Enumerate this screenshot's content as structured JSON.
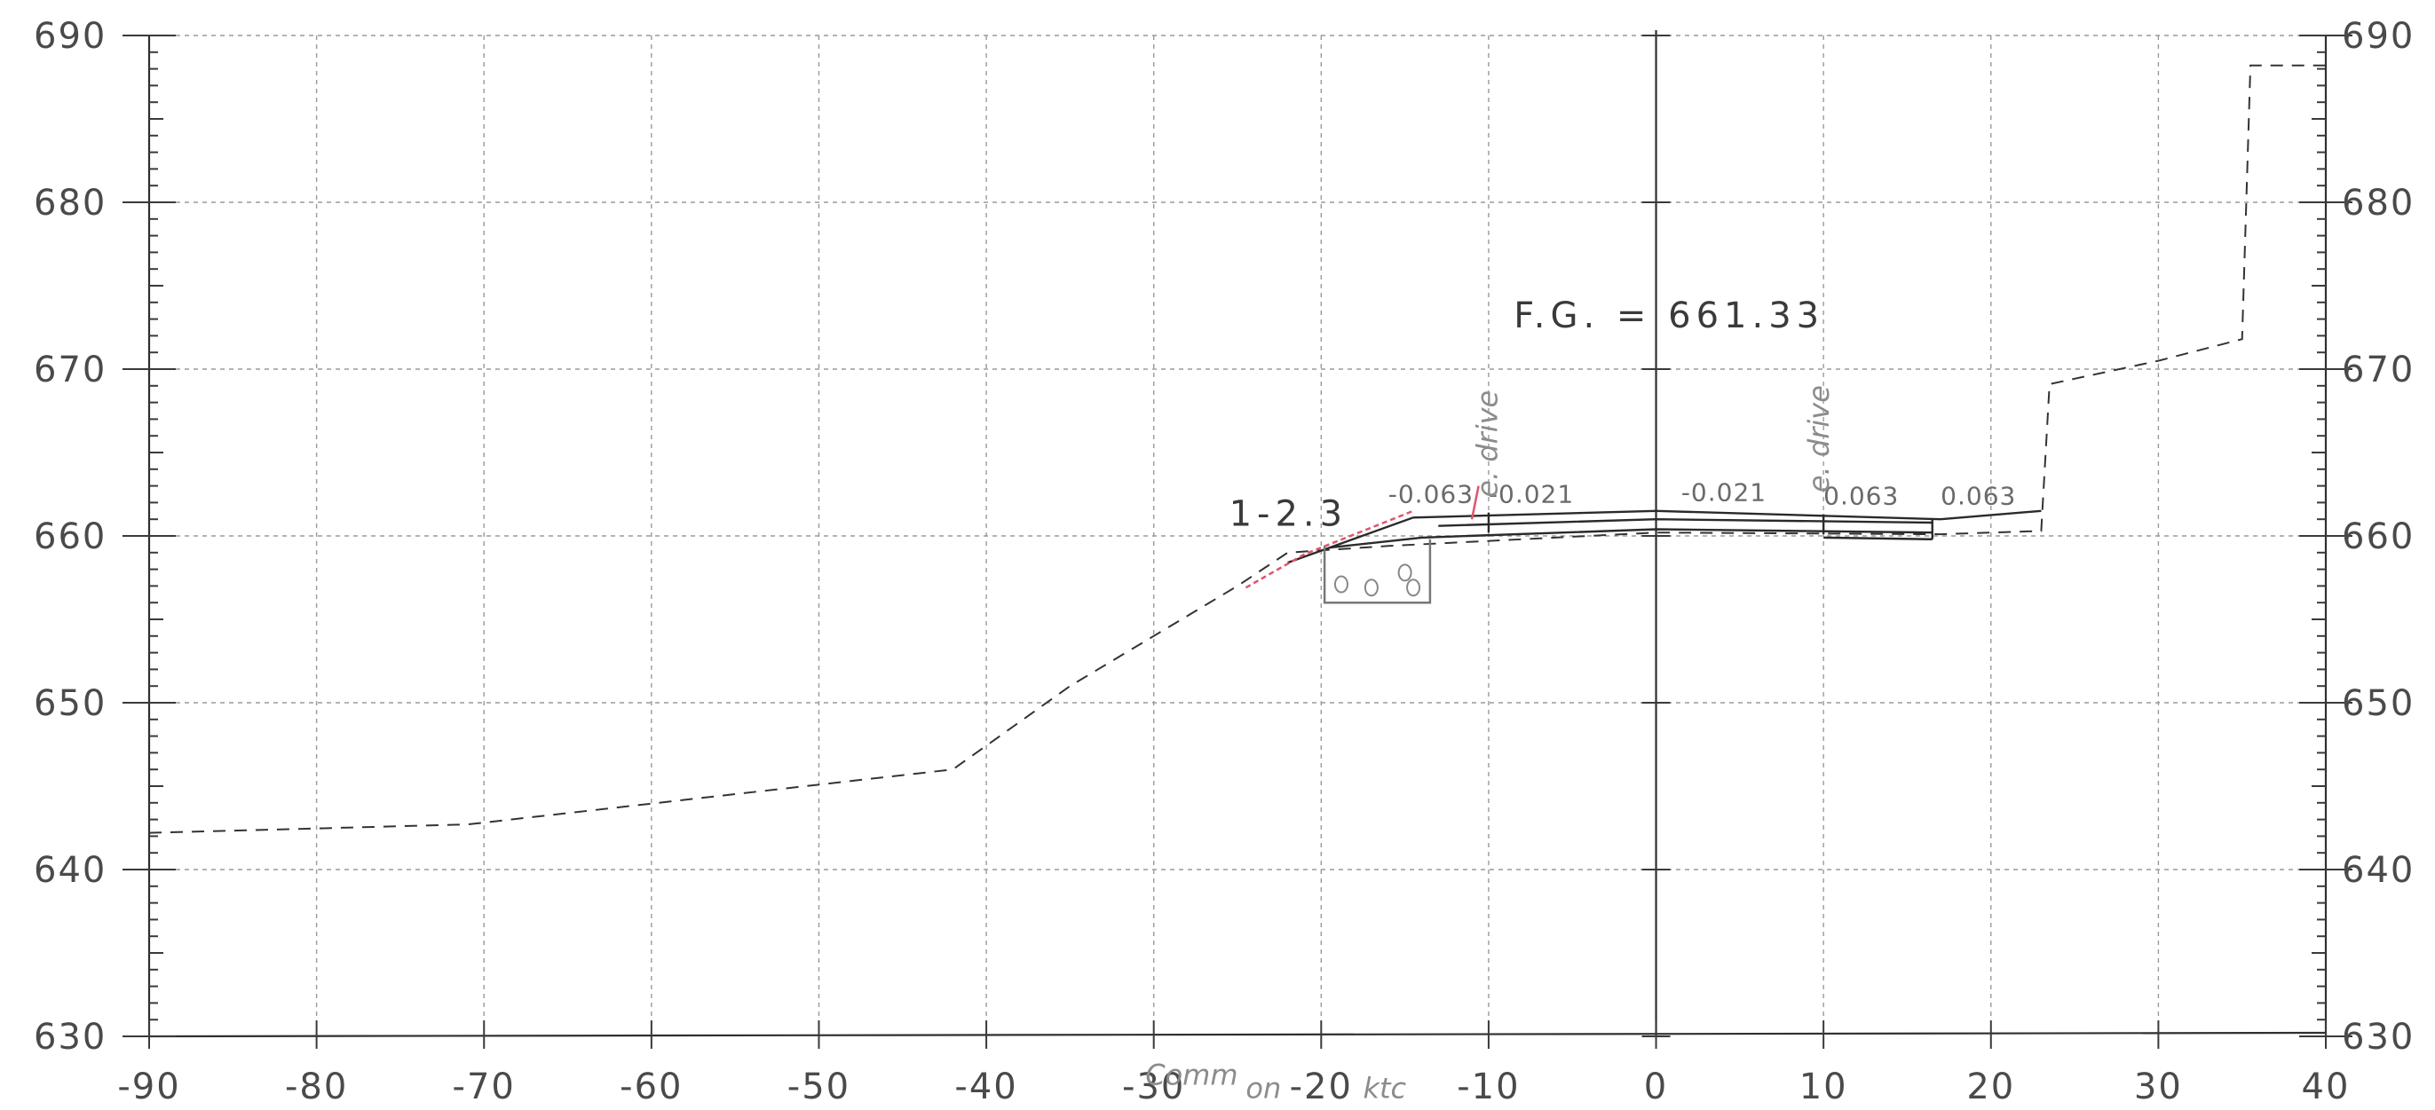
{
  "axes": {
    "x_ticks": [
      "-90",
      "-80",
      "-70",
      "-60",
      "-50",
      "-40",
      "-30",
      "-20",
      "-10",
      "0",
      "10",
      "20",
      "30",
      "40"
    ],
    "y_ticks": [
      "630",
      "640",
      "650",
      "660",
      "670",
      "680",
      "690"
    ]
  },
  "chart_data": {
    "type": "line",
    "title": "",
    "xlabel": "",
    "ylabel": "",
    "xlim": [
      -90,
      40
    ],
    "ylim": [
      630,
      690
    ],
    "grid": true,
    "series": [
      {
        "x": [
          -90,
          -71,
          -42,
          -35,
          -30,
          -25,
          -22,
          -16,
          0,
          17,
          23,
          23.5,
          30,
          35,
          35.5,
          40
        ],
        "values": [
          642.2,
          642.7,
          646,
          651,
          654,
          657,
          659,
          659.4,
          660.2,
          660.1,
          660.3,
          669.1,
          670.5,
          671.8,
          688.2,
          688.2
        ]
      },
      {
        "x": [
          -22,
          -19.5,
          -14.5,
          0,
          17,
          23
        ],
        "values": [
          658.4,
          659.3,
          661.1,
          661.5,
          661,
          661.5
        ]
      },
      {
        "x": [
          -19.5,
          -14,
          0,
          16.5
        ],
        "values": [
          659.3,
          659.9,
          660.4,
          660.2
        ]
      },
      {
        "x": [
          -13,
          0,
          16.5
        ],
        "values": [
          660.6,
          661,
          660.8
        ]
      }
    ],
    "annotations": [
      {
        "text": "F.G. = 661.33",
        "x": -8.5,
        "y": 672.5
      },
      {
        "text": "1-2.3",
        "x": -25.5,
        "y": 660.6
      },
      {
        "text": "-0.063",
        "x": -16,
        "y": 662
      },
      {
        "text": "-0.021",
        "x": -10,
        "y": 662
      },
      {
        "text": "-0.021",
        "x": 1.5,
        "y": 662.1
      },
      {
        "text": "0.063",
        "x": 10,
        "y": 661.9
      },
      {
        "text": "0.063",
        "x": 17,
        "y": 661.9
      },
      {
        "text": "e. drive",
        "x": -9.5,
        "y": 662.3
      },
      {
        "text": "e. drive",
        "x": 10.3,
        "y": 662.6
      },
      {
        "text": "Comm",
        "x": -30.5,
        "y": 627.1
      },
      {
        "text": "on",
        "x": -24.5,
        "y": 626.3
      },
      {
        "text": "ktc",
        "x": -17.5,
        "y": 626.3
      }
    ]
  }
}
